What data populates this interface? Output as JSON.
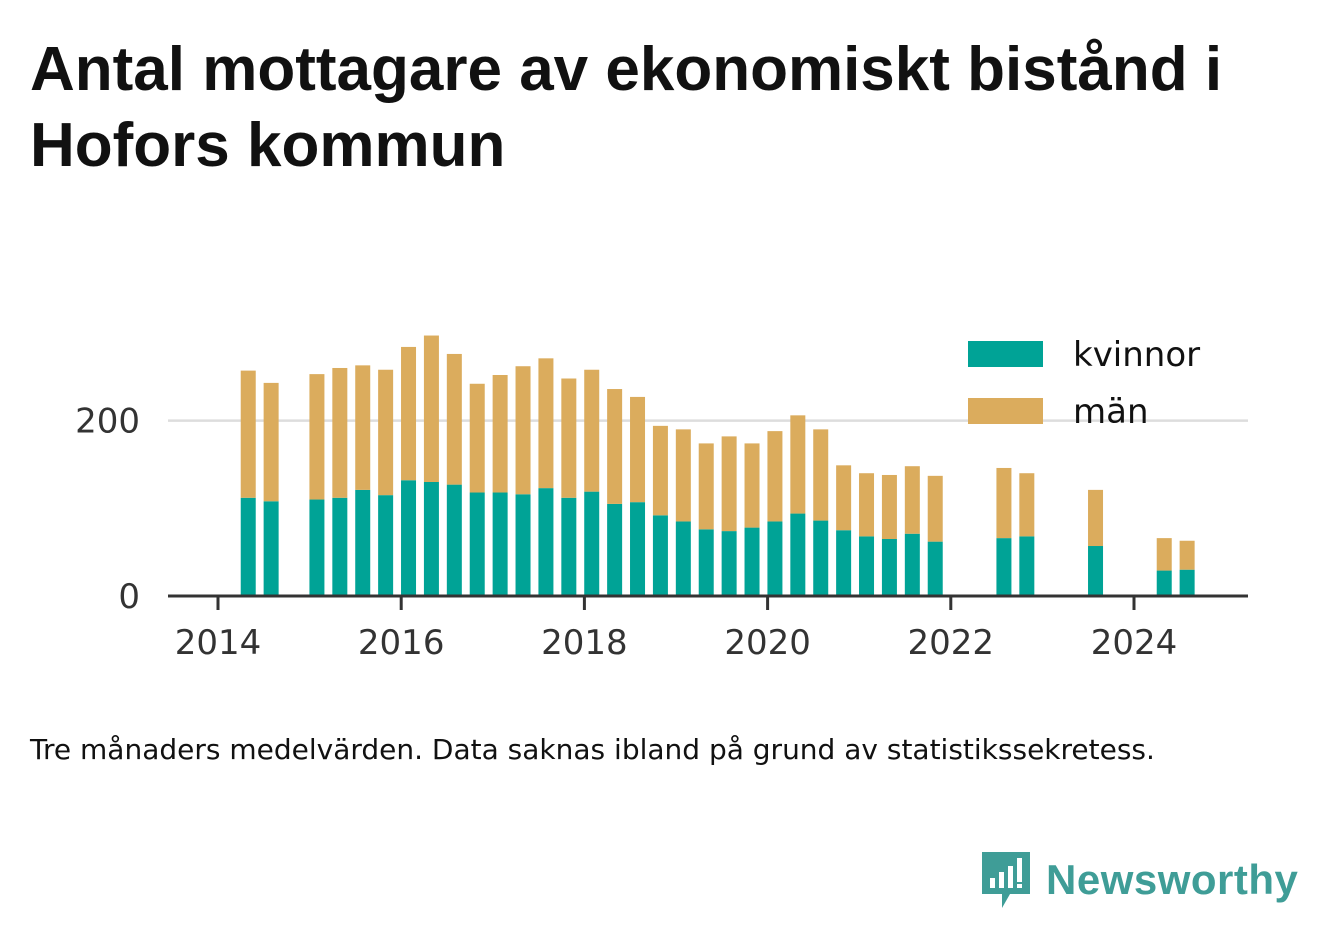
{
  "title": "Antal mottagare av ekonomiskt bistånd i Hofors kommun",
  "caption": "Tre månaders medelvärden. Data saknas ibland på grund av statistikssekretess.",
  "brand": {
    "name": "Newsworthy",
    "icon": "newsworthy-logo-icon"
  },
  "colors": {
    "kvinnor": "#00a396",
    "man": "#dbac5d",
    "axis": "#333333",
    "grid": "#dddddd"
  },
  "chart_data": {
    "type": "bar",
    "stacked": true,
    "x_unit": "year",
    "xlim": [
      2013.7,
      2025.2
    ],
    "ylim": [
      0,
      300
    ],
    "x_ticks": [
      2014,
      2016,
      2018,
      2020,
      2022,
      2024
    ],
    "x_tick_labels": [
      "2014",
      "2016",
      "2018",
      "2020",
      "2022",
      "2024"
    ],
    "y_ticks": [
      0,
      200
    ],
    "y_tick_labels": [
      "0",
      "200"
    ],
    "grid": "horizontal",
    "legend_position": "top-right",
    "x": [
      2014.33,
      2014.58,
      2015.08,
      2015.33,
      2015.58,
      2015.83,
      2016.08,
      2016.33,
      2016.58,
      2016.83,
      2017.08,
      2017.33,
      2017.58,
      2017.83,
      2018.08,
      2018.33,
      2018.58,
      2018.83,
      2019.08,
      2019.33,
      2019.58,
      2019.83,
      2020.08,
      2020.33,
      2020.58,
      2020.83,
      2021.08,
      2021.33,
      2021.58,
      2021.83,
      2022.58,
      2022.83,
      2023.58,
      2024.33,
      2024.58
    ],
    "series": [
      {
        "name": "kvinnor",
        "values": [
          112,
          108,
          110,
          112,
          121,
          115,
          132,
          130,
          127,
          118,
          118,
          116,
          123,
          112,
          119,
          105,
          107,
          92,
          85,
          76,
          74,
          78,
          85,
          94,
          86,
          75,
          68,
          65,
          71,
          62,
          66,
          68,
          57,
          29,
          30
        ]
      },
      {
        "name": "män",
        "values": [
          145,
          135,
          143,
          148,
          142,
          143,
          152,
          167,
          149,
          124,
          134,
          146,
          148,
          136,
          139,
          131,
          120,
          102,
          105,
          98,
          108,
          96,
          103,
          112,
          104,
          74,
          72,
          73,
          77,
          75,
          80,
          72,
          64,
          37,
          33
        ]
      }
    ]
  }
}
